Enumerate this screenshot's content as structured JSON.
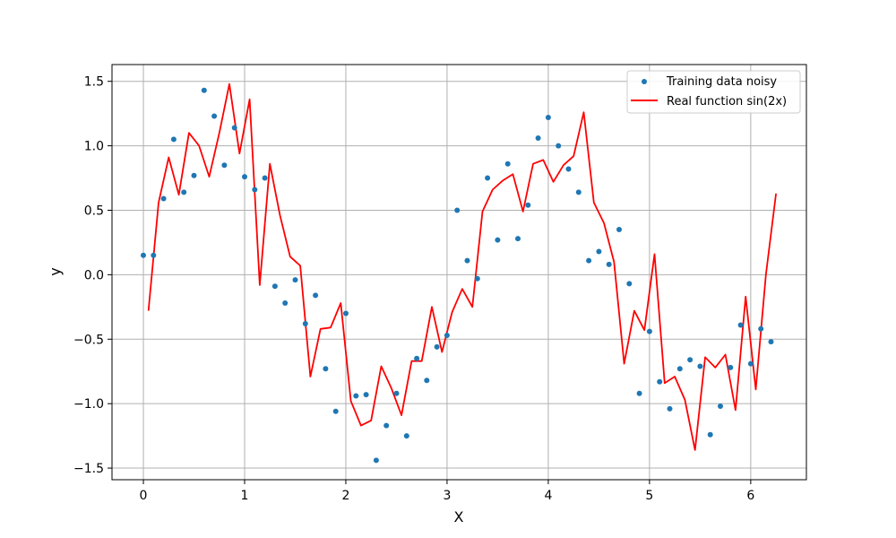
{
  "chart_data": {
    "type": "scatter",
    "title": "",
    "xlabel": "X",
    "ylabel": "y",
    "xlim": [
      -0.31,
      6.55
    ],
    "ylim": [
      -1.59,
      1.63
    ],
    "xticks": [
      0,
      1,
      2,
      3,
      4,
      5,
      6
    ],
    "yticks": [
      -1.5,
      -1.0,
      -0.5,
      0.0,
      0.5,
      1.0,
      1.5
    ],
    "xtick_labels": [
      "0",
      "1",
      "2",
      "3",
      "4",
      "5",
      "6"
    ],
    "ytick_labels": [
      "−1.5",
      "−1.0",
      "−0.5",
      "0.0",
      "0.5",
      "1.0",
      "1.5"
    ],
    "grid": true,
    "legend_position": "top-right",
    "series": [
      {
        "name": "Training data noisy",
        "kind": "scatter",
        "color": "#1f77b4",
        "x": [
          0.0,
          0.1,
          0.2,
          0.3,
          0.4,
          0.5,
          0.6,
          0.7,
          0.8,
          0.9,
          1.0,
          1.1,
          1.2,
          1.3,
          1.4,
          1.5,
          1.6,
          1.7,
          1.8,
          1.9,
          2.0,
          2.1,
          2.2,
          2.3,
          2.4,
          2.5,
          2.6,
          2.7,
          2.8,
          2.9,
          3.0,
          3.1,
          3.2,
          3.3,
          3.4,
          3.5,
          3.6,
          3.7,
          3.8,
          3.9,
          4.0,
          4.1,
          4.2,
          4.3,
          4.4,
          4.5,
          4.6,
          4.7,
          4.8,
          4.9,
          5.0,
          5.1,
          5.2,
          5.3,
          5.4,
          5.5,
          5.6,
          5.7,
          5.8,
          5.9,
          6.0,
          6.1,
          6.2
        ],
        "y": [
          0.15,
          0.15,
          0.59,
          1.05,
          0.64,
          0.77,
          1.43,
          1.23,
          0.85,
          1.14,
          0.76,
          0.66,
          0.75,
          -0.09,
          -0.22,
          -0.04,
          -0.38,
          -0.16,
          -0.73,
          -1.06,
          -0.3,
          -0.94,
          -0.93,
          -1.44,
          -1.17,
          -0.92,
          -1.25,
          -0.65,
          -0.82,
          -0.56,
          -0.47,
          0.5,
          0.11,
          -0.03,
          0.75,
          0.27,
          0.86,
          0.28,
          0.54,
          1.06,
          1.22,
          1.0,
          0.82,
          0.64,
          0.11,
          0.18,
          0.08,
          0.35,
          -0.07,
          -0.92,
          -0.44,
          -0.83,
          -1.04,
          -0.73,
          -0.66,
          -0.71,
          -1.24,
          -1.02,
          -0.72,
          -0.39,
          -0.69,
          -0.42,
          -0.52
        ]
      },
      {
        "name": "Real function sin(2x)",
        "kind": "line",
        "color": "#ff0000",
        "x": [
          0.05,
          0.15,
          0.25,
          0.35,
          0.45,
          0.55,
          0.65,
          0.75,
          0.85,
          0.95,
          1.05,
          1.15,
          1.25,
          1.35,
          1.45,
          1.55,
          1.65,
          1.75,
          1.85,
          1.95,
          2.05,
          2.15,
          2.25,
          2.35,
          2.45,
          2.55,
          2.65,
          2.75,
          2.85,
          2.95,
          3.05,
          3.15,
          3.25,
          3.35,
          3.45,
          3.55,
          3.65,
          3.75,
          3.85,
          3.95,
          4.05,
          4.15,
          4.25,
          4.35,
          4.45,
          4.55,
          4.65,
          4.75,
          4.85,
          4.95,
          5.05,
          5.15,
          5.25,
          5.35,
          5.45,
          5.55,
          5.65,
          5.75,
          5.85,
          5.95,
          6.05,
          6.15,
          6.25
        ],
        "y": [
          -0.28,
          0.56,
          0.91,
          0.62,
          1.1,
          1.0,
          0.76,
          1.1,
          1.48,
          0.94,
          1.36,
          -0.08,
          0.86,
          0.46,
          0.14,
          0.07,
          -0.79,
          -0.42,
          -0.41,
          -0.22,
          -0.98,
          -1.17,
          -1.13,
          -0.71,
          -0.88,
          -1.09,
          -0.67,
          -0.67,
          -0.25,
          -0.6,
          -0.29,
          -0.11,
          -0.25,
          0.49,
          0.66,
          0.73,
          0.78,
          0.49,
          0.86,
          0.89,
          0.72,
          0.85,
          0.92,
          1.26,
          0.56,
          0.4,
          0.1,
          -0.69,
          -0.28,
          -0.43,
          0.16,
          -0.84,
          -0.79,
          -0.97,
          -1.36,
          -0.64,
          -0.72,
          -0.62,
          -1.05,
          -0.17,
          -0.89,
          0.0,
          0.63
        ]
      }
    ]
  }
}
